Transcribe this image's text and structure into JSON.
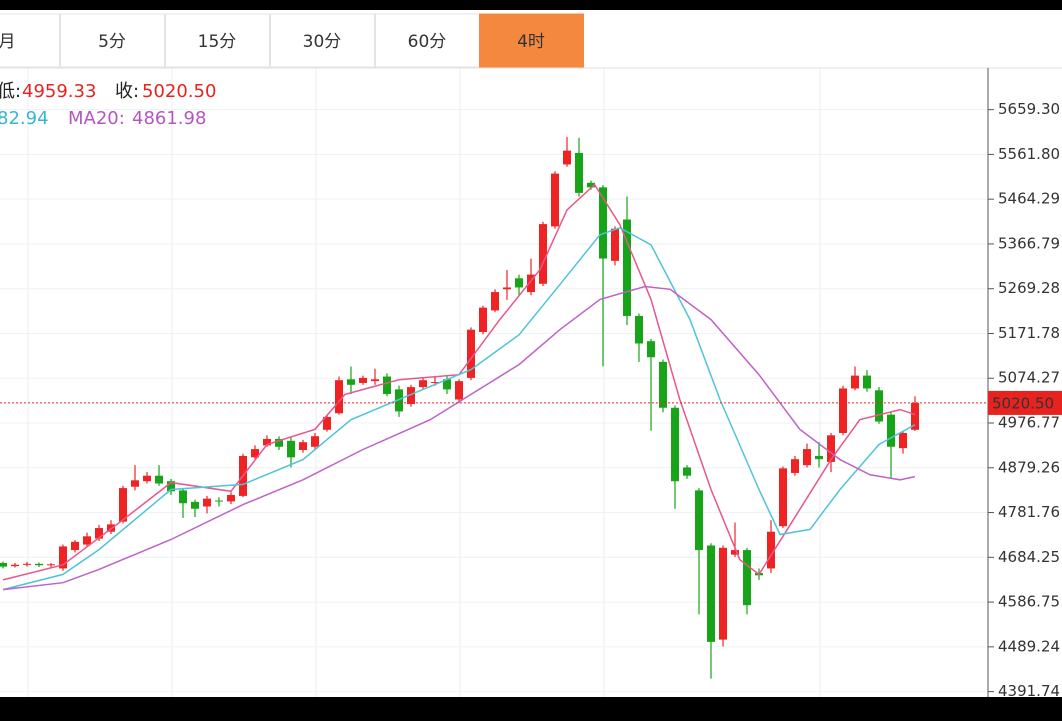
{
  "tabs": {
    "items": [
      "月",
      "5分",
      "15分",
      "30分",
      "60分",
      "4时"
    ],
    "active": 5
  },
  "chart_data": {
    "type": "candlestick",
    "categories": [
      null,
      null,
      null,
      null,
      null,
      null,
      null,
      null,
      null,
      null,
      null,
      null,
      null,
      null,
      null,
      null,
      null,
      null,
      null,
      null,
      null,
      null,
      null,
      null,
      null,
      null,
      null,
      null,
      null,
      null,
      null,
      null,
      null,
      null,
      null,
      null,
      null,
      null,
      null,
      null,
      null,
      null,
      null,
      null,
      null,
      null,
      null,
      null,
      null,
      null,
      null,
      null,
      null,
      null,
      null,
      null,
      null,
      null,
      null,
      null,
      null,
      null,
      null,
      null,
      null,
      null,
      null,
      null,
      null,
      null,
      null,
      null,
      null,
      null,
      null,
      null,
      null
    ],
    "up_color": "#ee2424",
    "down_color": "#18a418",
    "open": [
      4672,
      4665,
      4668,
      4670,
      4667,
      4660,
      4700,
      4712,
      4725,
      4740,
      4762,
      4838,
      4850,
      4862,
      4850,
      4830,
      4805,
      4795,
      4808,
      4806,
      4818,
      4902,
      4928,
      4942,
      4938,
      4918,
      4925,
      4962,
      4998,
      5072,
      5064,
      5068,
      5078,
      5050,
      5018,
      5055,
      5064,
      5072,
      5028,
      5075,
      5175,
      5222,
      5268,
      5292,
      5262,
      5280,
      5405,
      5540,
      5565,
      5500,
      5490,
      5330,
      5420,
      5210,
      5155,
      5110,
      5010,
      4880,
      4830,
      4710,
      4505,
      4690,
      4700,
      4650,
      4660,
      4752,
      4868,
      4885,
      4905,
      4892,
      4955,
      5052,
      5080,
      5048,
      4995,
      4922,
      4962
    ],
    "high": [
      4675,
      4672,
      4674,
      4673,
      4672,
      4712,
      4722,
      4738,
      4755,
      4765,
      4840,
      4885,
      4870,
      4885,
      4855,
      4835,
      4810,
      4818,
      4815,
      4826,
      4910,
      4928,
      4950,
      4948,
      4945,
      4940,
      4955,
      4995,
      5078,
      5100,
      5080,
      5095,
      5085,
      5058,
      5060,
      5075,
      5078,
      5080,
      5072,
      5185,
      5232,
      5268,
      5310,
      5300,
      5335,
      5415,
      5525,
      5600,
      5598,
      5505,
      5495,
      5405,
      5470,
      5215,
      5160,
      5115,
      5015,
      4885,
      4835,
      4715,
      4710,
      4760,
      4705,
      4660,
      4765,
      4882,
      4905,
      4932,
      4935,
      4955,
      5058,
      5100,
      5092,
      5055,
      5000,
      4960,
      5035
    ],
    "low": [
      4660,
      4662,
      4664,
      4663,
      4662,
      4655,
      4695,
      4708,
      4720,
      4735,
      4758,
      4830,
      4845,
      4840,
      4820,
      4770,
      4772,
      4780,
      4795,
      4800,
      4815,
      4898,
      4925,
      4918,
      4880,
      4912,
      4920,
      4958,
      4995,
      5040,
      5060,
      5060,
      5035,
      4990,
      5012,
      5050,
      5058,
      5040,
      5020,
      5070,
      5170,
      5218,
      5245,
      5255,
      5255,
      5275,
      5400,
      5535,
      5470,
      5485,
      5100,
      5320,
      5190,
      5110,
      4960,
      5000,
      4790,
      4855,
      4560,
      4420,
      4490,
      4685,
      4560,
      4635,
      4650,
      4748,
      4862,
      4880,
      4880,
      4870,
      4950,
      5048,
      5045,
      4975,
      4855,
      4910,
      4959.33
    ],
    "close": [
      4664,
      4668,
      4670,
      4667,
      4669,
      4708,
      4718,
      4730,
      4748,
      4756,
      4835,
      4852,
      4862,
      4845,
      4828,
      4802,
      4790,
      4812,
      4806,
      4820,
      4905,
      4920,
      4942,
      4925,
      4902,
      4935,
      4948,
      4990,
      5070,
      5060,
      5075,
      5072,
      5040,
      5002,
      5055,
      5070,
      5066,
      5050,
      5068,
      5180,
      5228,
      5262,
      5272,
      5272,
      5300,
      5410,
      5520,
      5570,
      5478,
      5490,
      5335,
      5400,
      5210,
      5150,
      5120,
      5010,
      4850,
      4862,
      4700,
      4500,
      4705,
      4700,
      4580,
      4645,
      4740,
      4878,
      4898,
      4920,
      4898,
      4950,
      5052,
      5080,
      5052,
      4980,
      4925,
      4955,
      5020.5
    ],
    "lines": [
      {
        "color": "#e9568d",
        "x": [
          0,
          5,
          10,
          14,
          19,
          22,
          26,
          28.5,
          33,
          38,
          41.4,
          44.75,
          47,
          49.3,
          51.4,
          54,
          56.4,
          59,
          61.4,
          63,
          65.6,
          69,
          71.4,
          74.75,
          76
        ],
        "values": [
          4635,
          4668,
          4766,
          4847,
          4828,
          4930,
          4963,
          5039,
          5071,
          5082,
          5202,
          5311,
          5441,
          5496,
          5409,
          5246,
          5028,
          4832,
          4679,
          4647,
          4755,
          4897,
          4984,
          5006,
          4995
        ]
      },
      {
        "color": "#4fc3d9",
        "x": [
          0,
          5,
          8,
          14,
          20,
          25,
          29,
          35,
          39,
          43,
          46.4,
          49.75,
          51.4,
          54,
          57.25,
          59.75,
          63,
          64.75,
          67.25,
          69.75,
          73,
          76
        ],
        "values": [
          4614,
          4647,
          4701,
          4832,
          4843,
          4897,
          4984,
          5050,
          5093,
          5169,
          5278,
          5387,
          5402,
          5365,
          5202,
          5028,
          4832,
          4734,
          4745,
          4832,
          4930,
          4973
        ]
      },
      {
        "color": "#c061c9",
        "x": [
          0,
          5,
          8,
          14,
          20,
          25,
          30,
          35.6,
          39,
          43,
          46.4,
          49.75,
          53.5,
          55.6,
          59,
          63,
          66.4,
          69.75,
          72.25,
          74.75,
          76
        ],
        "values": [
          4614,
          4629,
          4658,
          4723,
          4799,
          4853,
          4919,
          4984,
          5039,
          5104,
          5180,
          5246,
          5274,
          5268,
          5202,
          5082,
          4963,
          4897,
          4864,
          4853,
          4860
        ]
      }
    ],
    "ylim": [
      4380,
      5750
    ],
    "yticks": [
      {
        "value": 5659.3,
        "label": "5659.30"
      },
      {
        "value": 5561.8,
        "label": "5561.80"
      },
      5464.29,
      5366.79,
      5269.28,
      5171.78,
      5074.27,
      4976.77,
      4879.26,
      4781.76,
      4684.25,
      4586.75,
      4489.24,
      4391.74
    ],
    "grid": true,
    "last_price": {
      "value": 5020.5,
      "label": "5020.50"
    },
    "legend": [
      {
        "label": "低:",
        "value": 4959.33,
        "color": "#e8231f"
      },
      {
        "label": "收:",
        "value": 5020.5,
        "value_label": "5020.50",
        "color": "#e8231f"
      }
    ],
    "ma_legend": [
      {
        "text": "82.94",
        "color": "#36b6cf"
      },
      {
        "label": "MA20:",
        "value": 4861.98,
        "color": "#b455c3"
      }
    ]
  }
}
